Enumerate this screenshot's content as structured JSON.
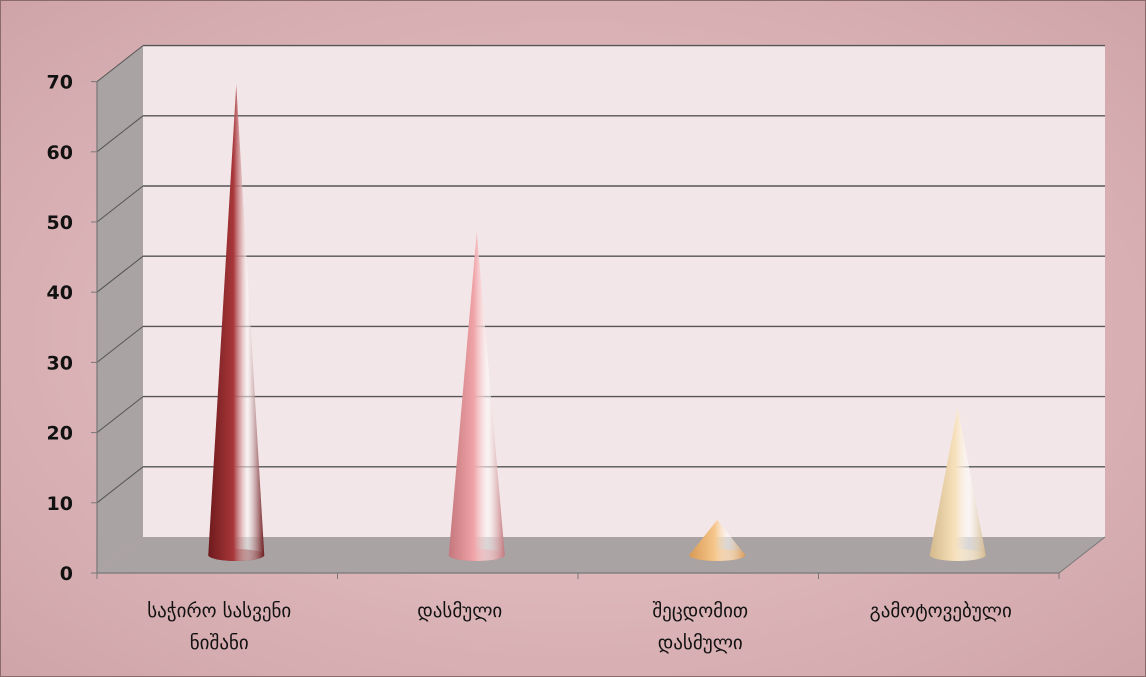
{
  "chart_data": {
    "type": "bar",
    "style": "3d-cone",
    "title": "",
    "xlabel": "",
    "ylabel": "",
    "ylim": [
      0,
      70
    ],
    "yticks": [
      0,
      10,
      20,
      30,
      40,
      50,
      60,
      70
    ],
    "grid": true,
    "legend": "none",
    "categories": [
      [
        "საჭირო სასვენი",
        "ნიშანი"
      ],
      [
        "დასმული"
      ],
      [
        "შეცდომით",
        "დასმული"
      ],
      [
        "გამოტოვებული"
      ]
    ],
    "values": [
      67,
      46,
      5,
      21
    ],
    "colors": {
      "bars": [
        "#a8373a",
        "#f0a4a8",
        "#f6c68a",
        "#f7e1bc"
      ],
      "bar_shadows": [
        "#6e1a1d",
        "#c4777c",
        "#d89a55",
        "#d4b98c"
      ],
      "back_wall": "#f3e6e8",
      "side_wall": "#a9a3a3",
      "floor": "#a9a3a3",
      "grid": "#555555",
      "background": "#ddb9bc"
    }
  }
}
